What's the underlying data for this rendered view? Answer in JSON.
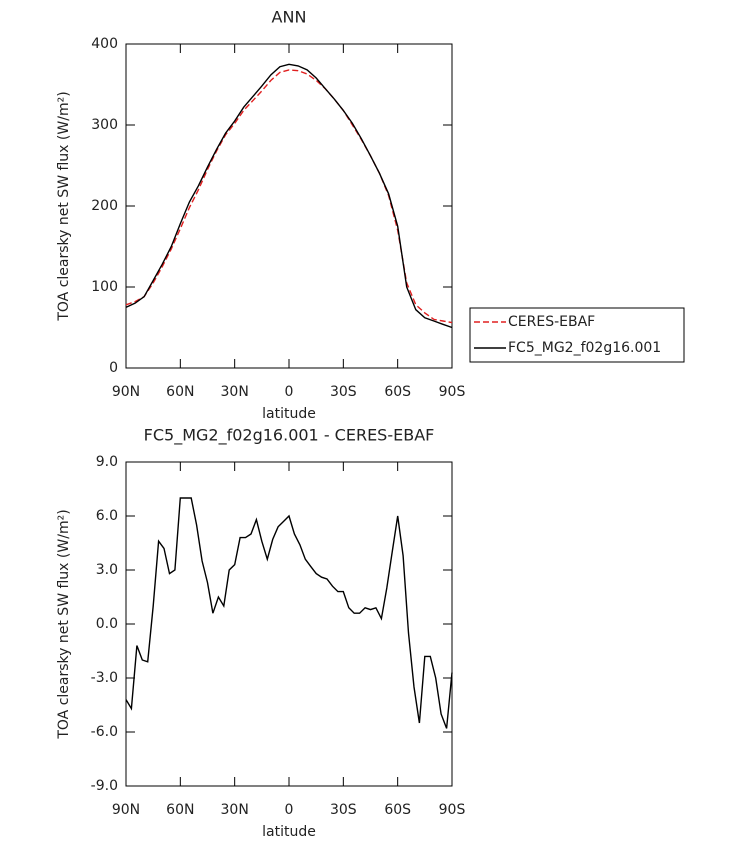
{
  "chart_data": [
    {
      "type": "line",
      "title": "ANN",
      "xlabel": "latitude",
      "ylabel": "TOA clearsky net SW flux (W/m²)",
      "x": [
        90,
        85,
        80,
        75,
        70,
        65,
        60,
        55,
        50,
        45,
        40,
        35,
        30,
        25,
        20,
        15,
        10,
        5,
        0,
        -5,
        -10,
        -15,
        -20,
        -25,
        -30,
        -35,
        -40,
        -45,
        -50,
        -55,
        -60,
        -65,
        -70,
        -75,
        -80,
        -85,
        -90
      ],
      "series": [
        {
          "name": "CERES-EBAF",
          "color": "#e02020",
          "dash": true,
          "values": [
            78,
            82,
            88,
            105,
            125,
            147,
            172,
            198,
            220,
            245,
            268,
            288,
            302,
            318,
            330,
            342,
            355,
            365,
            368,
            367,
            363,
            355,
            345,
            332,
            318,
            300,
            282,
            262,
            240,
            213,
            170,
            105,
            78,
            68,
            60,
            58,
            56
          ]
        },
        {
          "name": "FC5_MG2_f02g16.001",
          "color": "#000000",
          "dash": false,
          "values": [
            75,
            80,
            88,
            108,
            128,
            150,
            178,
            205,
            225,
            248,
            270,
            290,
            305,
            322,
            335,
            348,
            362,
            372,
            375,
            373,
            368,
            358,
            345,
            332,
            318,
            302,
            283,
            262,
            240,
            215,
            175,
            100,
            72,
            62,
            58,
            54,
            50
          ]
        }
      ],
      "xlim": [
        90,
        -90
      ],
      "xticks": [
        {
          "value": 90,
          "label": "90N"
        },
        {
          "value": 60,
          "label": "60N"
        },
        {
          "value": 30,
          "label": "30N"
        },
        0,
        {
          "value": -30,
          "label": "30S"
        },
        {
          "value": -60,
          "label": "60S"
        },
        {
          "value": -90,
          "label": "90S"
        }
      ],
      "ylim": [
        0,
        400
      ],
      "yticks": [
        0,
        100,
        200,
        300,
        400
      ],
      "legend": "right"
    },
    {
      "type": "line",
      "title": "FC5_MG2_f02g16.001 - CERES-EBAF",
      "xlabel": "latitude",
      "ylabel": "TOA clearsky net SW flux (W/m²)",
      "x": [
        90,
        87,
        84,
        81,
        78,
        75,
        72,
        69,
        66,
        63,
        60,
        57,
        54,
        51,
        48,
        45,
        42,
        39,
        36,
        33,
        30,
        27,
        24,
        21,
        18,
        15,
        12,
        9,
        6,
        3,
        0,
        -3,
        -6,
        -9,
        -12,
        -15,
        -18,
        -21,
        -24,
        -27,
        -30,
        -33,
        -36,
        -39,
        -42,
        -45,
        -48,
        -51,
        -54,
        -57,
        -60,
        -63,
        -66,
        -69,
        -72,
        -75,
        -78,
        -81,
        -84,
        -87,
        -90
      ],
      "series": [
        {
          "color": "#000000",
          "dash": false,
          "values": [
            -4.2,
            -4.7,
            -1.2,
            -2.0,
            -2.1,
            1.0,
            4.6,
            4.2,
            2.8,
            3.0,
            7.0,
            7.0,
            7.0,
            5.5,
            3.5,
            2.3,
            0.6,
            1.5,
            1.0,
            3.0,
            3.3,
            4.8,
            4.8,
            5.0,
            5.8,
            4.6,
            3.6,
            4.7,
            5.4,
            5.7,
            6.0,
            5.0,
            4.4,
            3.6,
            3.2,
            2.8,
            2.6,
            2.5,
            2.1,
            1.8,
            1.8,
            0.9,
            0.6,
            0.6,
            0.9,
            0.8,
            0.9,
            0.3,
            2.0,
            4.0,
            6.0,
            3.8,
            -0.5,
            -3.5,
            -5.5,
            -1.8,
            -1.8,
            -3.0,
            -5.0,
            -5.8,
            -2.7
          ]
        }
      ],
      "xlim": [
        90,
        -90
      ],
      "xticks": [
        {
          "value": 90,
          "label": "90N"
        },
        {
          "value": 60,
          "label": "60N"
        },
        {
          "value": 30,
          "label": "30N"
        },
        0,
        {
          "value": -30,
          "label": "30S"
        },
        {
          "value": -60,
          "label": "60S"
        },
        {
          "value": -90,
          "label": "90S"
        }
      ],
      "ylim": [
        -9,
        9
      ],
      "yticks": [
        {
          "value": -9,
          "label": "-9.0"
        },
        {
          "value": -6,
          "label": "-6.0"
        },
        {
          "value": -3,
          "label": "-3.0"
        },
        {
          "value": 0,
          "label": "0.0"
        },
        {
          "value": 3,
          "label": "3.0"
        },
        {
          "value": 6,
          "label": "6.0"
        },
        {
          "value": 9,
          "label": "9.0"
        }
      ]
    }
  ]
}
